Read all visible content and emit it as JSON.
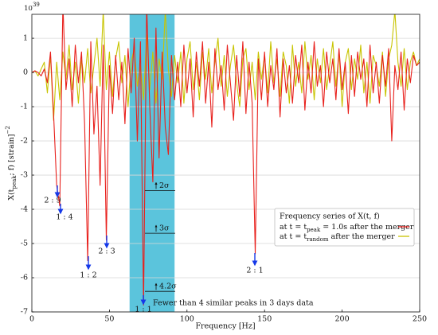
{
  "chart_data": {
    "type": "line",
    "xlabel": "Frequency  [Hz]",
    "ylabel": "X(t_peak; f)  [strain]^−2",
    "y_multiplier": "10^39",
    "xlim": [
      0,
      250
    ],
    "ylim": [
      -7,
      1.7
    ],
    "xticks": [
      0,
      50,
      100,
      150,
      200,
      250
    ],
    "yticks": [
      -7,
      -6,
      -5,
      -4,
      -3,
      -2,
      -1,
      0,
      1
    ],
    "grid": true,
    "band": [
      63,
      92
    ],
    "band_color": "#5bc4dc",
    "legend_title": "Frequency series of X(t, f)",
    "legend_position": "lower right",
    "x": [
      0,
      2,
      4,
      6,
      8,
      10,
      12,
      14,
      16,
      18,
      20,
      22,
      24,
      26,
      28,
      30,
      32,
      34,
      36,
      38,
      40,
      42,
      44,
      46,
      48,
      50,
      52,
      54,
      56,
      58,
      60,
      62,
      64,
      66,
      68,
      70,
      72,
      74,
      76,
      78,
      80,
      82,
      84,
      86,
      88,
      90,
      92,
      94,
      96,
      98,
      100,
      102,
      104,
      106,
      108,
      110,
      112,
      114,
      116,
      118,
      120,
      122,
      124,
      126,
      128,
      130,
      132,
      134,
      136,
      138,
      140,
      142,
      144,
      146,
      148,
      150,
      152,
      154,
      156,
      158,
      160,
      162,
      164,
      166,
      168,
      170,
      172,
      174,
      176,
      178,
      180,
      182,
      184,
      186,
      188,
      190,
      192,
      194,
      196,
      198,
      200,
      202,
      204,
      206,
      208,
      210,
      212,
      214,
      216,
      218,
      220,
      222,
      224,
      226,
      228,
      230,
      232,
      234,
      236,
      238,
      240,
      242,
      244,
      246,
      248,
      250
    ],
    "series": [
      {
        "name": "at t = t_peak = 1.0s after the merger",
        "color": "#e8201c",
        "values": [
          0,
          0.05,
          0,
          -0.1,
          0.1,
          -0.3,
          0.6,
          -1.2,
          -3.3,
          -3.9,
          2.0,
          -0.5,
          0.4,
          -1.0,
          0.8,
          -0.3,
          0.6,
          -1.5,
          -5.5,
          0.9,
          -1.8,
          -0.4,
          -3.3,
          0.8,
          -4.9,
          0.2,
          -1.2,
          0.5,
          -0.8,
          0.3,
          -1.5,
          0.7,
          -0.6,
          1.0,
          -2.0,
          0.9,
          -6.8,
          2.0,
          -1.0,
          -3.2,
          1.3,
          -2.5,
          0.6,
          -1.6,
          -2.4,
          0.5,
          -0.8,
          0.3,
          -1.0,
          0.8,
          -0.6,
          0.4,
          -1.3,
          0.6,
          -0.4,
          0.9,
          -0.9,
          0.3,
          -1.6,
          0.7,
          -0.5,
          0.2,
          -1.1,
          0.8,
          -0.3,
          -1.4,
          0.5,
          -0.7,
          0.9,
          -1.2,
          0.3,
          -0.9,
          -5.3,
          0.4,
          -0.8,
          0.6,
          -1.0,
          0.2,
          -0.5,
          0.7,
          -1.3,
          0.4,
          -0.6,
          0.2,
          -0.9,
          0.5,
          -0.3,
          0.8,
          -1.1,
          0.3,
          -0.6,
          0.9,
          -0.4,
          0.2,
          -1.0,
          0.6,
          -0.3,
          0.4,
          -0.8,
          0.7,
          -0.5,
          0.3,
          -1.2,
          0.5,
          -0.7,
          0.6,
          -0.2,
          0.4,
          -1.0,
          0.8,
          -0.6,
          0.3,
          -0.9,
          0.5,
          -0.4,
          0.7,
          -2.0,
          0.2,
          -0.5,
          0.6,
          -1.1,
          0.4,
          -0.3,
          0.5,
          0.2,
          0.3
        ]
      },
      {
        "name": "at t = t_random after the merger",
        "color": "#c8c400",
        "values": [
          0,
          0.05,
          -0.1,
          0.1,
          0.3,
          -0.6,
          0.5,
          -1.4,
          0.3,
          -0.8,
          0.6,
          -0.2,
          0.8,
          -0.5,
          0.3,
          -0.9,
          0.4,
          -0.3,
          0.7,
          -0.6,
          0.2,
          1.0,
          -0.4,
          1.8,
          -0.5,
          0.6,
          -0.7,
          0.4,
          0.9,
          -0.3,
          0.5,
          -1.0,
          0.3,
          0.7,
          -0.4,
          0.2,
          -0.8,
          1.1,
          -0.5,
          0.6,
          -0.9,
          0.4,
          -0.2,
          1.8,
          0.1,
          -0.7,
          0.5,
          -0.3,
          0.6,
          -0.9,
          0.4,
          0.9,
          -0.5,
          0.3,
          -0.8,
          0.6,
          -0.2,
          0.7,
          -0.6,
          0.3,
          1.0,
          -0.4,
          0.5,
          -0.7,
          0.2,
          0.8,
          -0.3,
          -1.0,
          0.4,
          0.7,
          -0.5,
          0.3,
          -0.8,
          0.6,
          -0.2,
          0.5,
          -0.6,
          0.9,
          -0.3,
          0.4,
          -0.7,
          0.6,
          0.2,
          -0.9,
          0.8,
          -0.4,
          0.3,
          -0.6,
          0.9,
          -0.2,
          0.5,
          -0.8,
          0.4,
          -0.3,
          0.7,
          -0.5,
          0.2,
          0.9,
          -0.4,
          0.6,
          -1.0,
          0.3,
          0.7,
          -0.5,
          0.4,
          -0.2,
          0.8,
          -0.6,
          0.3,
          -0.9,
          0.5,
          0.2,
          -0.4,
          0.6,
          -0.7,
          0.4,
          0.8,
          1.8,
          0.3,
          -0.4,
          0.7,
          -0.5,
          0.3,
          0.6,
          0.2,
          0.4
        ]
      }
    ],
    "thresholds": [
      {
        "label": "2σ",
        "value": -3.45
      },
      {
        "label": "3σ",
        "value": -4.7
      },
      {
        "label": "4.2σ",
        "value": -6.4
      }
    ],
    "annotations": [
      "2 : 9",
      "1 : 4",
      "1 : 2",
      "2 : 3",
      "1 : 1",
      "2 : 1",
      "Fewer than 4 similar peaks in 3 days data"
    ]
  }
}
